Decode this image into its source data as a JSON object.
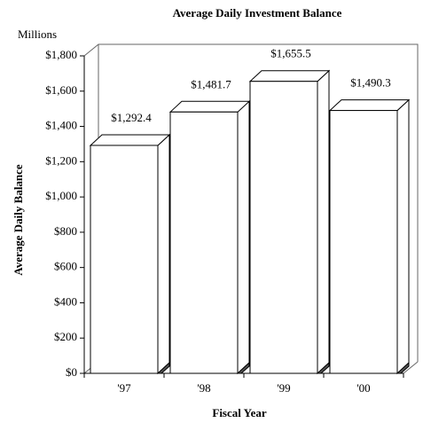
{
  "chart_data": {
    "type": "bar3d",
    "title": "Average Daily Investment Balance",
    "unit_label": "Millions",
    "x_label": "Fiscal Year",
    "y_label": "Average Daily Balance",
    "categories": [
      "'97",
      "'98",
      "'99",
      "'00"
    ],
    "values": [
      1292.4,
      1481.7,
      1655.5,
      1490.3
    ],
    "value_labels": [
      "$1,292.4",
      "$1,481.7",
      "$1,655.5",
      "$1,490.3"
    ],
    "color": "#ffffff",
    "ylim": [
      0,
      1800
    ],
    "yticks": [
      {
        "value": 0,
        "label": "$0"
      },
      {
        "value": 200,
        "label": "$200"
      },
      {
        "value": 400,
        "label": "$400"
      },
      {
        "value": 600,
        "label": "$600"
      },
      {
        "value": 800,
        "label": "$800"
      },
      {
        "value": 1000,
        "label": "$1,000"
      },
      {
        "value": 1200,
        "label": "$1,200"
      },
      {
        "value": 1400,
        "label": "$1,400"
      },
      {
        "value": 1600,
        "label": "$1,600"
      },
      {
        "value": 1800,
        "label": "$1,800"
      }
    ],
    "grid": false
  }
}
